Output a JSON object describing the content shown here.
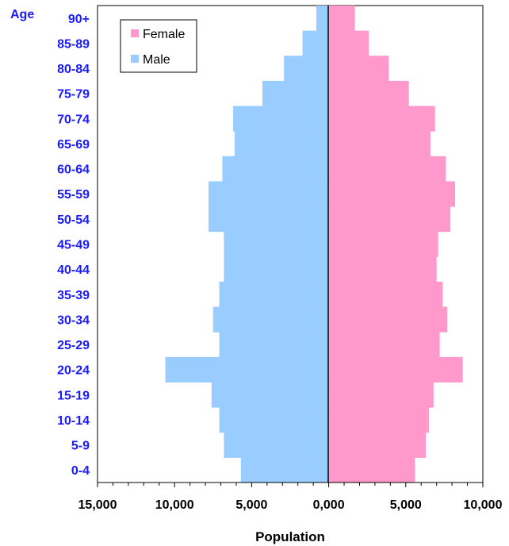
{
  "chart_data": {
    "type": "bar",
    "orientation": "horizontal-population-pyramid",
    "categories": [
      "0-4",
      "5-9",
      "10-14",
      "15-19",
      "20-24",
      "25-29",
      "30-34",
      "35-39",
      "40-44",
      "45-49",
      "50-54",
      "55-59",
      "60-64",
      "65-69",
      "70-74",
      "75-79",
      "80-84",
      "85-89",
      "90+"
    ],
    "series": [
      {
        "name": "Female",
        "color": "#ff99cc",
        "values": [
          5600,
          6300,
          6500,
          6800,
          8700,
          7200,
          7700,
          7400,
          7000,
          7100,
          7900,
          8200,
          7600,
          6600,
          6900,
          5200,
          3900,
          2600,
          1700
        ]
      },
      {
        "name": "Male",
        "color": "#99ccff",
        "values": [
          5700,
          6800,
          7100,
          7600,
          10600,
          7100,
          7500,
          7100,
          6800,
          6800,
          7800,
          7800,
          6900,
          6100,
          6200,
          4300,
          2900,
          1700,
          800
        ]
      }
    ],
    "ylabel": "Age",
    "xlabel": "Population",
    "xlim": [
      -15000,
      10000
    ],
    "xticks": [
      {
        "value": -15000,
        "label": "15,000"
      },
      {
        "value": -10000,
        "label": "10,000"
      },
      {
        "value": -5000,
        "label": "5,000"
      },
      {
        "value": 0,
        "label": "0,000"
      },
      {
        "value": 5000,
        "label": "5,000"
      },
      {
        "value": 10000,
        "label": "10,000"
      }
    ],
    "grid": false,
    "legend_position": "top-left"
  }
}
